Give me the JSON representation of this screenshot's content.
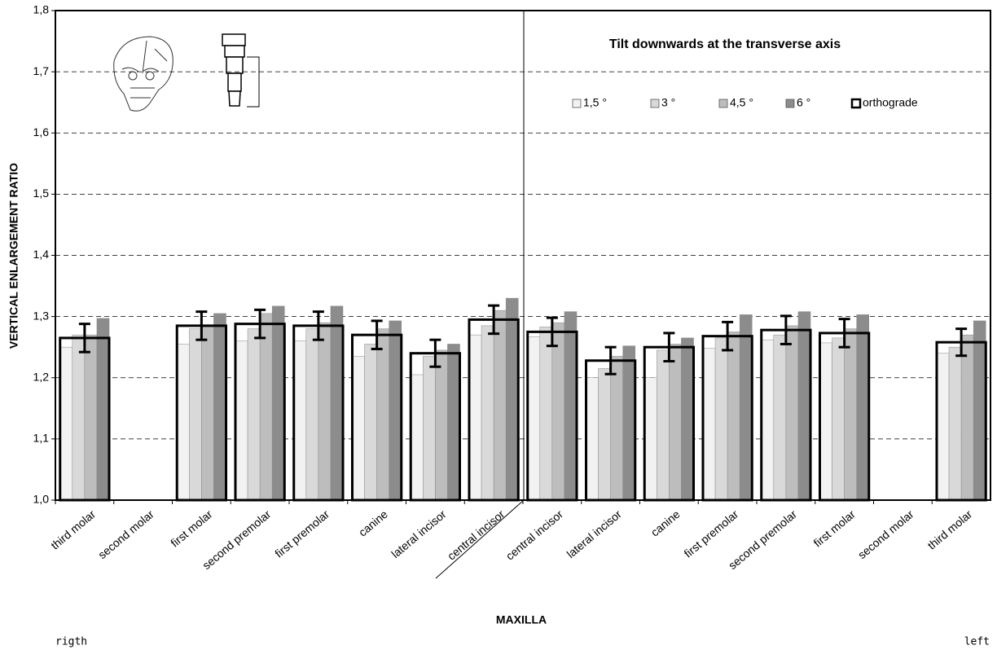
{
  "chart_data": {
    "type": "bar",
    "title": "Tilt downwards at the transverse axis",
    "y_label": "VERTICAL ENLARGEMENT RATIO",
    "x_label": "MAXILLA",
    "left_note": "rigth",
    "right_note": "left",
    "categories": [
      "third molar",
      "second molar",
      "first molar",
      "second premolar",
      "first premolar",
      "canine",
      "lateral incisor",
      "central incisor",
      "central incisor",
      "lateral incisor",
      "canine",
      "first premolar",
      "second premolar",
      "first molar",
      "second molar",
      "third molar"
    ],
    "series": [
      {
        "name": "1,5 °",
        "color": "#f2f2f2",
        "values": [
          1.25,
          null,
          1.255,
          1.26,
          1.26,
          1.235,
          1.205,
          1.27,
          1.267,
          1.2,
          1.2,
          1.248,
          1.262,
          1.257,
          null,
          1.24
        ]
      },
      {
        "name": "3 °",
        "color": "#d9d9d9",
        "values": [
          1.27,
          null,
          1.28,
          1.28,
          1.28,
          1.255,
          1.235,
          1.285,
          1.283,
          1.215,
          1.245,
          1.265,
          1.27,
          1.265,
          null,
          1.25
        ]
      },
      {
        "name": "4,5 °",
        "color": "#bdbdbd",
        "values": [
          1.27,
          null,
          1.285,
          1.305,
          1.29,
          1.28,
          1.245,
          1.31,
          1.29,
          1.235,
          1.255,
          1.275,
          1.285,
          1.28,
          null,
          1.27
        ]
      },
      {
        "name": "6 °",
        "color": "#8c8c8c",
        "values": [
          1.297,
          null,
          1.305,
          1.317,
          1.317,
          1.293,
          1.255,
          1.33,
          1.308,
          1.252,
          1.265,
          1.303,
          1.308,
          1.303,
          null,
          1.293
        ]
      },
      {
        "name": "orthograde",
        "color": "#000000",
        "outline": true,
        "values": [
          1.265,
          null,
          1.285,
          1.288,
          1.285,
          1.27,
          1.24,
          1.295,
          1.275,
          1.228,
          1.25,
          1.268,
          1.278,
          1.273,
          null,
          1.258
        ],
        "errors": [
          0.023,
          null,
          0.023,
          0.023,
          0.023,
          0.023,
          0.022,
          0.023,
          0.023,
          0.022,
          0.023,
          0.023,
          0.023,
          0.023,
          null,
          0.022
        ]
      }
    ],
    "ylim": [
      1.0,
      1.8
    ],
    "yticks": [
      {
        "value": 1.0,
        "label": "1,0"
      },
      {
        "value": 1.1,
        "label": "1,1"
      },
      {
        "value": 1.2,
        "label": "1,2"
      },
      {
        "value": 1.3,
        "label": "1,3"
      },
      {
        "value": 1.4,
        "label": "1,4"
      },
      {
        "value": 1.5,
        "label": "1,5"
      },
      {
        "value": 1.6,
        "label": "1,6"
      },
      {
        "value": 1.7,
        "label": "1,7"
      },
      {
        "value": 1.8,
        "label": "1,8"
      }
    ],
    "grid": true,
    "legend": "upper right"
  }
}
